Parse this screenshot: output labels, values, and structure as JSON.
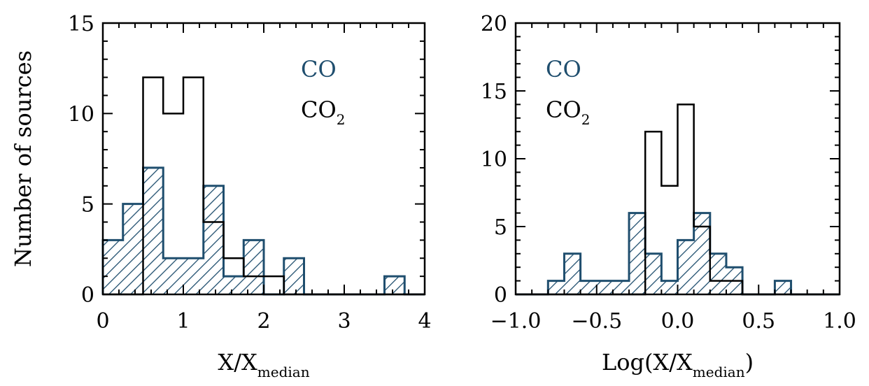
{
  "ylabel": "Number of sources",
  "colors": {
    "co": "#1f4e6e",
    "co2": "#000000"
  },
  "chart_data": [
    {
      "type": "histogram",
      "xlabel": {
        "main": "X/X",
        "sub": "median"
      },
      "xlim": [
        0,
        4
      ],
      "ylim": [
        0,
        15
      ],
      "xticks": [
        0,
        1,
        2,
        3,
        4
      ],
      "yticks": [
        0,
        5,
        10,
        15
      ],
      "xtick_labels": [
        "0",
        "1",
        "2",
        "3",
        "4"
      ],
      "ytick_labels": [
        "0",
        "5",
        "10",
        "15"
      ],
      "legend": [
        {
          "key": "co",
          "main": "CO",
          "sub": ""
        },
        {
          "key": "co2",
          "main": "CO",
          "sub": "2"
        }
      ],
      "bin_edges": [
        0,
        0.25,
        0.5,
        0.75,
        1.0,
        1.25,
        1.5,
        1.75,
        2.0,
        2.25,
        2.5,
        2.75,
        3.0,
        3.25,
        3.5,
        3.75,
        4.0
      ],
      "series": [
        {
          "key": "co2",
          "counts": [
            0,
            0,
            12,
            10,
            12,
            4,
            2,
            1,
            1,
            0,
            0,
            0,
            0,
            0,
            0,
            0
          ]
        },
        {
          "key": "co",
          "counts": [
            3,
            5,
            7,
            2,
            2,
            6,
            1,
            3,
            0,
            2,
            0,
            0,
            0,
            0,
            1,
            0
          ]
        }
      ]
    },
    {
      "type": "histogram",
      "xlabel": {
        "main": "Log(X/X",
        "sub": "median",
        "tail": ")"
      },
      "xlim": [
        -1.0,
        1.0
      ],
      "ylim": [
        0,
        20
      ],
      "xticks": [
        -1.0,
        -0.5,
        0.0,
        0.5,
        1.0
      ],
      "yticks": [
        0,
        5,
        10,
        15,
        20
      ],
      "xtick_labels": [
        "−1.0",
        "−0.5",
        "0.0",
        "0.5",
        "1.0"
      ],
      "ytick_labels": [
        "0",
        "5",
        "10",
        "15",
        "20"
      ],
      "legend": [
        {
          "key": "co",
          "main": "CO",
          "sub": ""
        },
        {
          "key": "co2",
          "main": "CO",
          "sub": "2"
        }
      ],
      "bin_edges": [
        -1.0,
        -0.9,
        -0.8,
        -0.7,
        -0.6,
        -0.5,
        -0.4,
        -0.3,
        -0.2,
        -0.1,
        0.0,
        0.1,
        0.2,
        0.3,
        0.4,
        0.5,
        0.6,
        0.7,
        0.8,
        0.9,
        1.0
      ],
      "series": [
        {
          "key": "co2",
          "counts": [
            0,
            0,
            0,
            0,
            0,
            0,
            0,
            0,
            12,
            8,
            14,
            5,
            1,
            1,
            0,
            0,
            0,
            0,
            0,
            0
          ]
        },
        {
          "key": "co",
          "counts": [
            0,
            0,
            1,
            3,
            1,
            1,
            1,
            6,
            3,
            1,
            4,
            6,
            3,
            2,
            0,
            0,
            1,
            0,
            0,
            0
          ]
        }
      ]
    }
  ]
}
